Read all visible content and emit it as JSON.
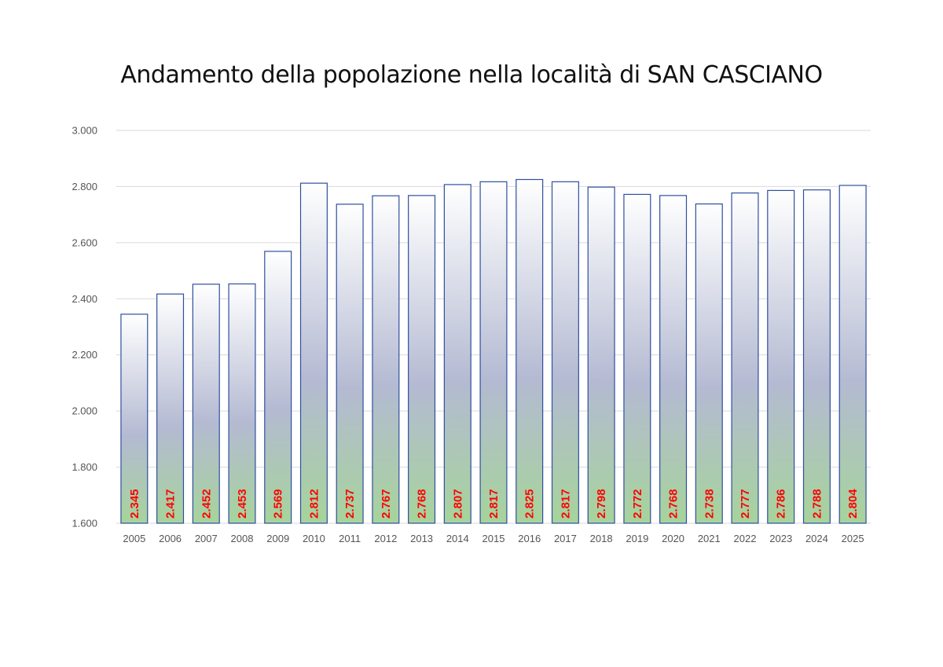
{
  "chart_data": {
    "type": "bar",
    "title": "Andamento della popolazione nella località di SAN CASCIANO",
    "categories": [
      "2005",
      "2006",
      "2007",
      "2008",
      "2009",
      "2010",
      "2011",
      "2012",
      "2013",
      "2014",
      "2015",
      "2016",
      "2017",
      "2018",
      "2019",
      "2020",
      "2021",
      "2022",
      "2023",
      "2024",
      "2025"
    ],
    "values": [
      2345,
      2417,
      2452,
      2453,
      2569,
      2812,
      2737,
      2767,
      2768,
      2807,
      2817,
      2825,
      2817,
      2798,
      2772,
      2768,
      2738,
      2777,
      2786,
      2788,
      2804
    ],
    "value_labels": [
      "2.345",
      "2.417",
      "2.452",
      "2.453",
      "2.569",
      "2.812",
      "2.737",
      "2.767",
      "2.768",
      "2.807",
      "2.817",
      "2.825",
      "2.817",
      "2.798",
      "2.772",
      "2.768",
      "2.738",
      "2.777",
      "2.786",
      "2.788",
      "2.804"
    ],
    "ylim": [
      1600,
      3000
    ],
    "yticks": [
      1600,
      1800,
      2000,
      2200,
      2400,
      2600,
      2800,
      3000
    ],
    "ytick_labels": [
      "1.600",
      "1.800",
      "2.000",
      "2.200",
      "2.400",
      "2.600",
      "2.800",
      "3.000"
    ],
    "grid": true,
    "legend": "none",
    "colors": {
      "bar_border": "#2f4f9e",
      "bar_top": "#ffffff",
      "bar_mid": "#b4bad2",
      "bar_bottom": "#a6d49b",
      "data_label": "#ff0000",
      "grid": "#d9d9d9"
    }
  }
}
